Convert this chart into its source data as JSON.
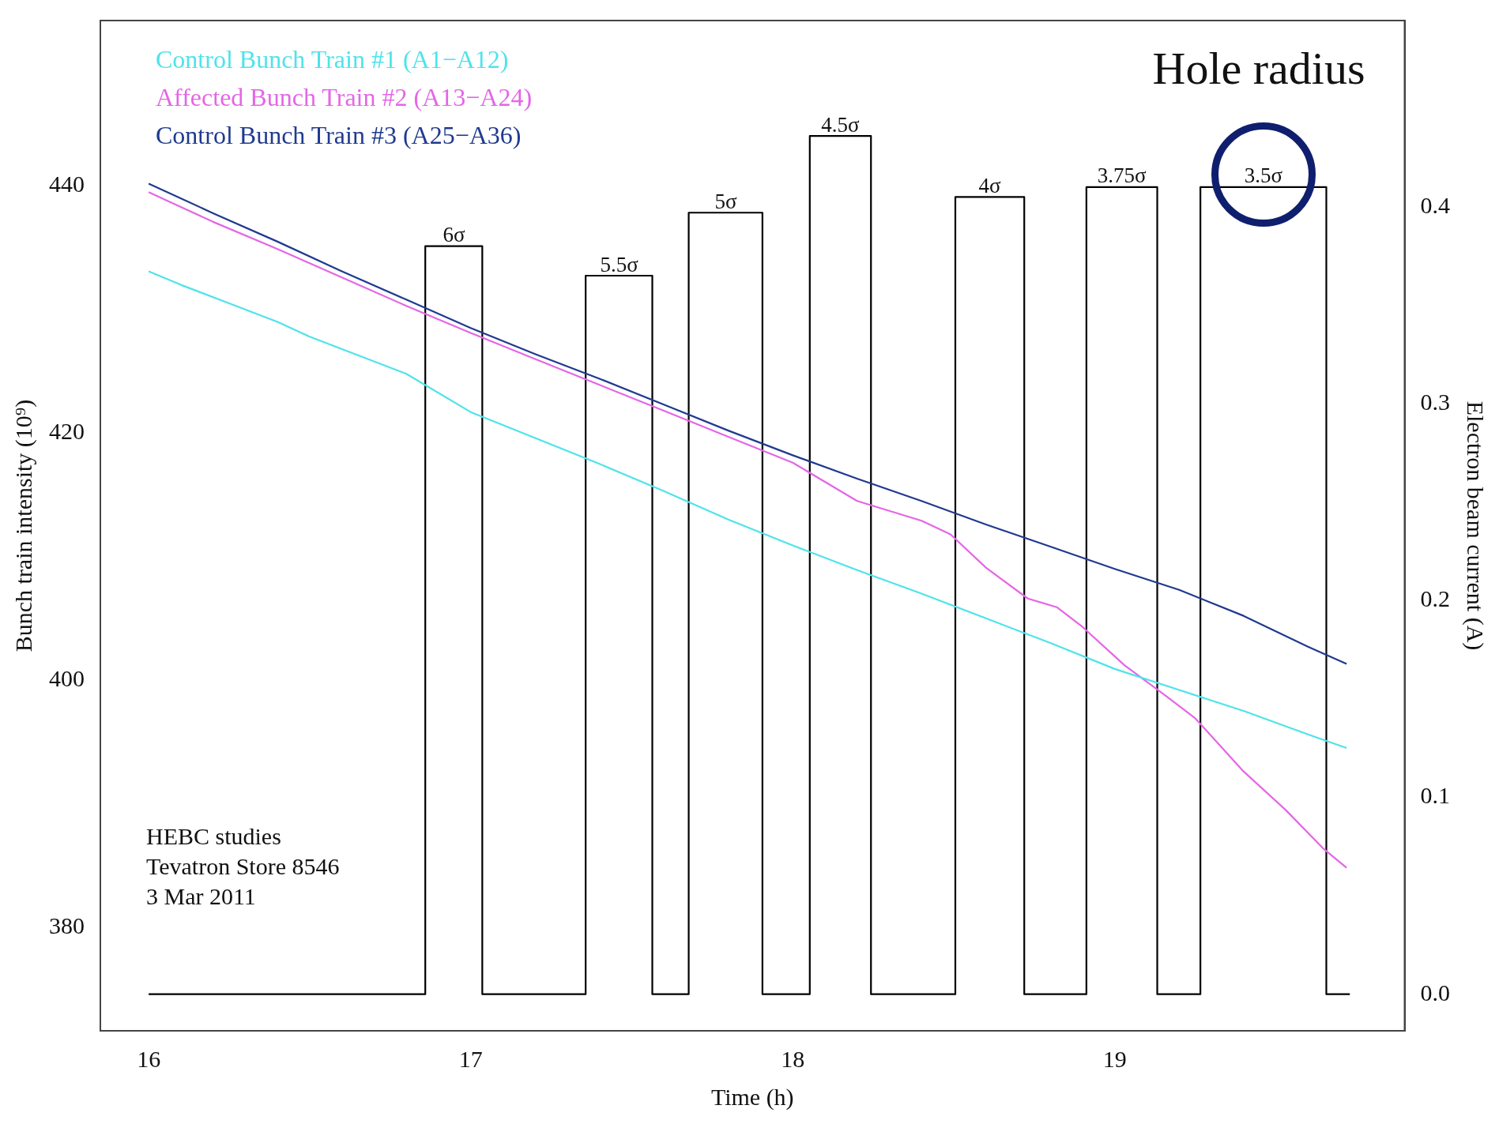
{
  "chart_data": {
    "type": "line",
    "xlabel": "Time (h)",
    "ylabel": "Bunch train intensity (10⁹)",
    "y2label": "Electron beam current (A)",
    "xlim": [
      15.85,
      19.9
    ],
    "xticks": [
      16,
      17,
      18,
      19
    ],
    "ylim": [
      371.6,
      453.4
    ],
    "yticks": [
      380,
      400,
      420,
      440
    ],
    "y2lim": [
      -0.0186,
      0.4946
    ],
    "y2ticks": [
      {
        "value": 0,
        "label": "0.0"
      },
      {
        "value": 0.1,
        "label": "0.1"
      },
      {
        "value": 0.2,
        "label": "0.2"
      },
      {
        "value": 0.3,
        "label": "0.3"
      },
      {
        "value": 0.4,
        "label": "0.4"
      }
    ],
    "grid": false,
    "legend": "top left",
    "marker": "none",
    "line_style": "solid",
    "annotations": [
      "Hole radius",
      {
        "text": "6σ",
        "x": 16.948,
        "y": 435.1
      },
      {
        "text": "5.5σ",
        "x": 17.461,
        "y": 432.7
      },
      {
        "text": "5σ",
        "x": 17.792,
        "y": 437.8
      },
      {
        "text": "4.5σ",
        "x": 18.148,
        "y": 444.0
      },
      {
        "text": "4σ",
        "x": 18.612,
        "y": 439.1
      },
      {
        "text": "3.75σ",
        "x": 19.022,
        "y": 439.9
      },
      {
        "text": "3.5σ",
        "x": 19.462,
        "y": 439.9
      },
      "HEBC studies",
      "Tevatron Store 8546",
      "3 Mar 2011"
    ],
    "series": [
      {
        "name": "Control Bunch Train #1 (A1−A12)",
        "color": "#4fe3ea",
        "x": [
          16,
          16.1,
          16.25,
          16.4,
          16.5,
          16.65,
          16.8,
          17,
          17.2,
          17.4,
          17.6,
          17.8,
          18,
          18.2,
          18.4,
          18.6,
          18.8,
          19,
          19.2,
          19.4,
          19.6,
          19.72
        ],
        "values": [
          433.1,
          432.0,
          430.5,
          429.0,
          427.8,
          426.3,
          424.8,
          421.7,
          419.6,
          417.5,
          415.3,
          413.0,
          410.9,
          408.9,
          407.0,
          405.0,
          403.0,
          400.9,
          399.2,
          397.5,
          395.6,
          394.5
        ]
      },
      {
        "name": "Affected Bunch Train #2 (A13−A24)",
        "color": "#e466e6",
        "x": [
          16,
          16.2,
          16.4,
          16.6,
          16.8,
          17,
          17.2,
          17.4,
          17.6,
          17.8,
          18,
          18.2,
          18.4,
          18.49,
          18.6,
          18.73,
          18.82,
          18.9,
          19.03,
          19.16,
          19.25,
          19.4,
          19.53,
          19.65,
          19.72
        ],
        "values": [
          439.5,
          437.1,
          434.9,
          432.6,
          430.3,
          428.1,
          426.0,
          423.9,
          421.8,
          419.7,
          417.6,
          414.5,
          412.9,
          411.8,
          409.1,
          406.6,
          405.9,
          404.3,
          401.2,
          398.7,
          396.9,
          392.6,
          389.5,
          386.3,
          384.8
        ]
      },
      {
        "name": "Control Bunch Train #3 (A25−A36)",
        "color": "#1f3a8f",
        "x": [
          16,
          16.2,
          16.4,
          16.6,
          16.8,
          17,
          17.2,
          17.4,
          17.6,
          17.8,
          18,
          18.2,
          18.4,
          18.6,
          18.8,
          19,
          19.2,
          19.4,
          19.6,
          19.72
        ],
        "values": [
          440.2,
          437.8,
          435.5,
          433.1,
          430.8,
          428.5,
          426.4,
          424.4,
          422.3,
          420.2,
          418.2,
          416.3,
          414.5,
          412.6,
          410.8,
          409.0,
          407.3,
          405.2,
          402.7,
          401.3
        ]
      },
      {
        "type": "step",
        "axis": "y2",
        "color": "#000000",
        "x": [
          16,
          16.859,
          17.036,
          17.357,
          17.564,
          17.677,
          17.906,
          18.053,
          18.243,
          18.505,
          18.719,
          18.912,
          19.132,
          19.266,
          19.657,
          19.73
        ],
        "values": [
          0,
          0.38,
          0,
          0.365,
          0,
          0.397,
          0,
          0.436,
          0,
          0.405,
          0,
          0.41,
          0,
          0.41,
          0,
          0
        ]
      }
    ]
  }
}
